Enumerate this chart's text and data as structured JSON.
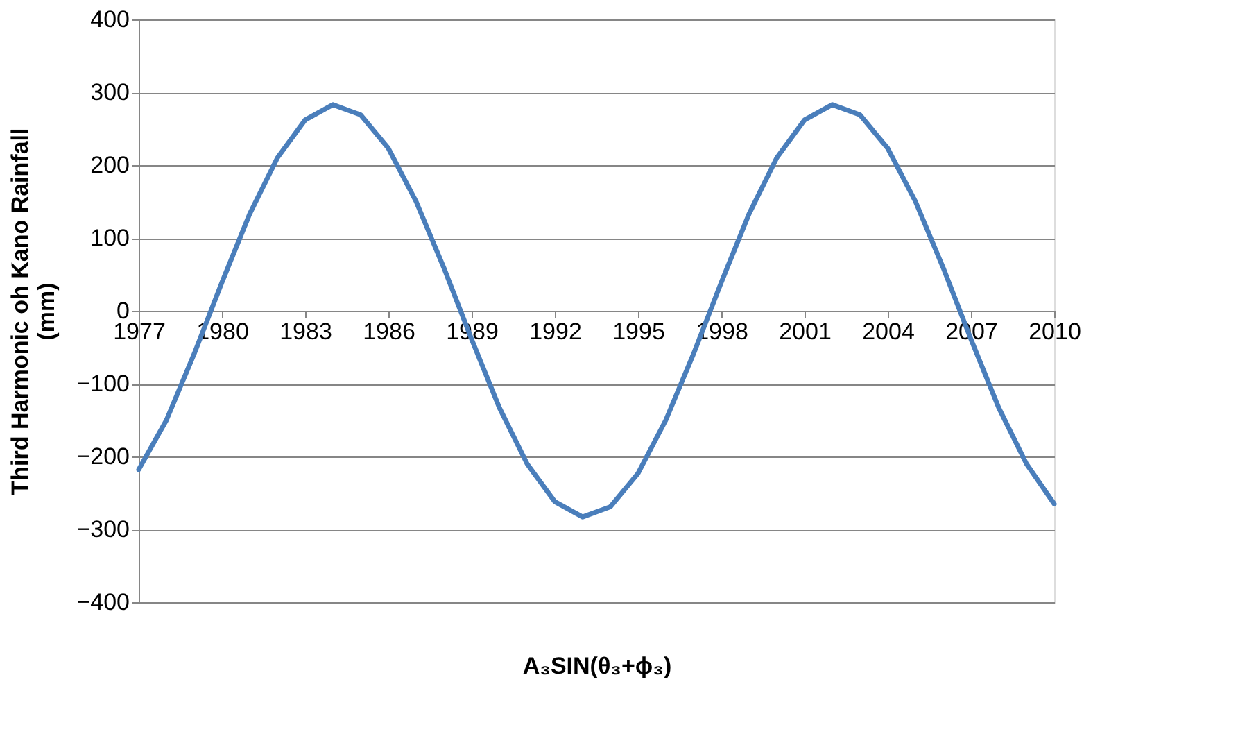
{
  "chart_data": {
    "type": "line",
    "xlabel": "A₃SIN(θ₃+ϕ₃)",
    "ylabel": "Third Harmonic oh Kano Rainfall (mm)",
    "x": [
      1977,
      1978,
      1979,
      1980,
      1981,
      1982,
      1983,
      1984,
      1985,
      1986,
      1987,
      1988,
      1989,
      1990,
      1991,
      1992,
      1993,
      1994,
      1995,
      1996,
      1997,
      1998,
      1999,
      2000,
      2001,
      2002,
      2003,
      2004,
      2005,
      2006,
      2007,
      2008,
      2009,
      2010
    ],
    "series": [
      {
        "color": "#4a7ebb",
        "values": [
          -218,
          -150,
          -59,
          39,
          133,
          210,
          262,
          283,
          269,
          223,
          150,
          59,
          -39,
          -133,
          -210,
          -262,
          -283,
          -269,
          -223,
          -150,
          -59,
          39,
          133,
          210,
          262,
          283,
          269,
          223,
          150,
          59,
          -39,
          -133,
          -210,
          -265
        ]
      }
    ],
    "xlim": [
      1977,
      2010
    ],
    "xticks": [
      1977,
      1980,
      1983,
      1986,
      1989,
      1992,
      1995,
      1998,
      2001,
      2004,
      2007,
      2010
    ],
    "ylim": [
      -400,
      400
    ],
    "yticks": [
      -400,
      -300,
      -200,
      -100,
      0,
      100,
      200,
      300,
      400
    ],
    "grid": "y",
    "marker": "none",
    "line_style": "solid"
  }
}
